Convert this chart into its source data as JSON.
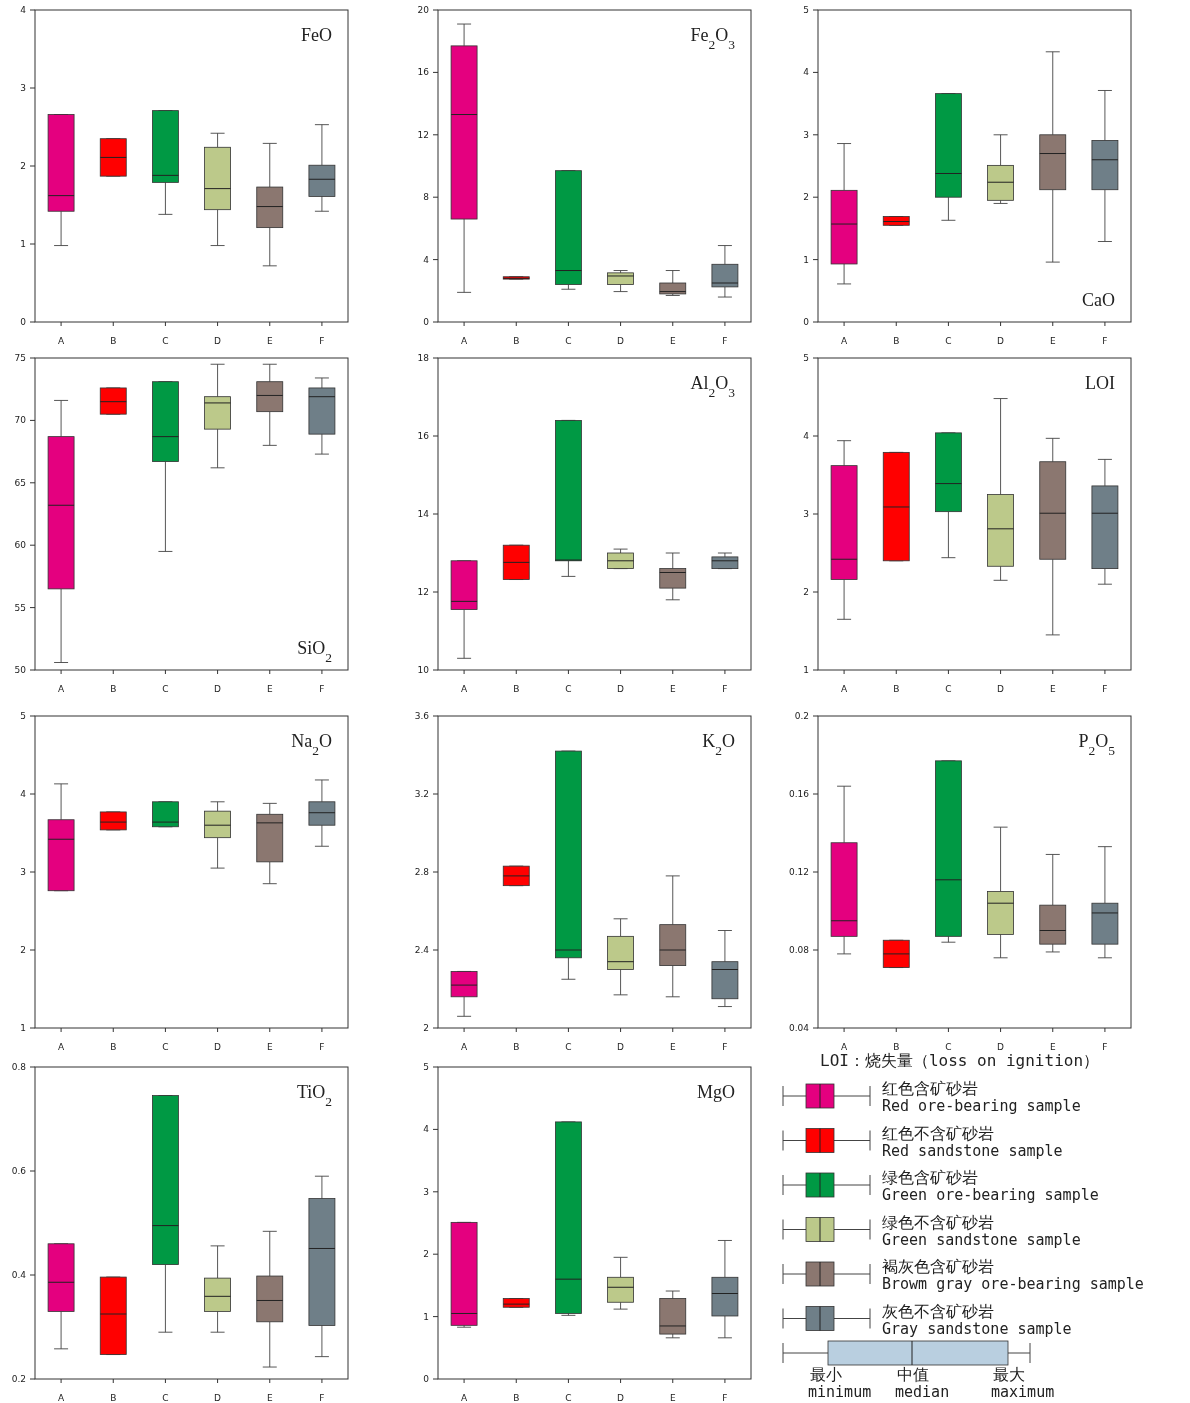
{
  "chart_data": [
    {
      "type": "box",
      "title": "FeO",
      "categories": [
        "A",
        "B",
        "C",
        "D",
        "E",
        "F"
      ],
      "colors": [
        "#e4007f",
        "#ff0000",
        "#009944",
        "#bcc98a",
        "#8b7770",
        "#6f7f88"
      ],
      "ylim": [
        0,
        4
      ],
      "yticks": [
        0,
        1,
        2,
        3,
        4
      ],
      "boxes": [
        {
          "low": 0.98,
          "q1": 1.42,
          "median": 1.62,
          "q3": 2.66,
          "high": 2.66
        },
        {
          "low": 1.87,
          "q1": 1.87,
          "median": 2.11,
          "q3": 2.35,
          "high": 2.35
        },
        {
          "low": 1.38,
          "q1": 1.79,
          "median": 1.88,
          "q3": 2.71,
          "high": 2.71
        },
        {
          "low": 0.98,
          "q1": 1.44,
          "median": 1.71,
          "q3": 2.24,
          "high": 2.42
        },
        {
          "low": 0.72,
          "q1": 1.21,
          "median": 1.48,
          "q3": 1.73,
          "high": 2.29
        },
        {
          "low": 1.42,
          "q1": 1.61,
          "median": 1.83,
          "q3": 2.01,
          "high": 2.53
        }
      ]
    },
    {
      "type": "box",
      "title": "Fe$_{2}$O$_{3}$",
      "categories": [
        "A",
        "B",
        "C",
        "D",
        "E",
        "F"
      ],
      "colors": [
        "#e4007f",
        "#ff0000",
        "#009944",
        "#bcc98a",
        "#8b7770",
        "#6f7f88"
      ],
      "ylim": [
        0,
        20
      ],
      "yticks": [
        0,
        4,
        8,
        12,
        16,
        20
      ],
      "boxes": [
        {
          "low": 1.9,
          "q1": 6.6,
          "median": 13.3,
          "q3": 17.7,
          "high": 19.1
        },
        {
          "low": 2.75,
          "q1": 2.75,
          "median": 2.8,
          "q3": 2.9,
          "high": 2.9
        },
        {
          "low": 2.1,
          "q1": 2.4,
          "median": 3.3,
          "q3": 9.7,
          "high": 9.7
        },
        {
          "low": 1.95,
          "q1": 2.4,
          "median": 2.95,
          "q3": 3.15,
          "high": 3.3
        },
        {
          "low": 1.7,
          "q1": 1.8,
          "median": 1.95,
          "q3": 2.5,
          "high": 3.3
        },
        {
          "low": 1.6,
          "q1": 2.25,
          "median": 2.5,
          "q3": 3.7,
          "high": 4.9
        }
      ]
    },
    {
      "type": "box",
      "title": "CaO",
      "categories": [
        "A",
        "B",
        "C",
        "D",
        "E",
        "F"
      ],
      "colors": [
        "#e4007f",
        "#ff0000",
        "#009944",
        "#bcc98a",
        "#8b7770",
        "#6f7f88"
      ],
      "ylim": [
        0,
        5
      ],
      "yticks": [
        0,
        1,
        2,
        3,
        4,
        5
      ],
      "boxes": [
        {
          "low": 0.61,
          "q1": 0.93,
          "median": 1.57,
          "q3": 2.11,
          "high": 2.86
        },
        {
          "low": 1.55,
          "q1": 1.55,
          "median": 1.61,
          "q3": 1.69,
          "high": 1.69
        },
        {
          "low": 1.63,
          "q1": 2.0,
          "median": 2.38,
          "q3": 3.66,
          "high": 3.66
        },
        {
          "low": 1.9,
          "q1": 1.95,
          "median": 2.24,
          "q3": 2.51,
          "high": 3.0
        },
        {
          "low": 0.96,
          "q1": 2.12,
          "median": 2.7,
          "q3": 3.0,
          "high": 4.33
        },
        {
          "low": 1.29,
          "q1": 2.12,
          "median": 2.6,
          "q3": 2.91,
          "high": 3.71
        }
      ]
    },
    {
      "type": "box",
      "title": "SiO$_{2}$",
      "categories": [
        "A",
        "B",
        "C",
        "D",
        "E",
        "F"
      ],
      "colors": [
        "#e4007f",
        "#ff0000",
        "#009944",
        "#bcc98a",
        "#8b7770",
        "#6f7f88"
      ],
      "ylim": [
        50,
        75
      ],
      "yticks": [
        50,
        55,
        60,
        65,
        70,
        75
      ],
      "boxes": [
        {
          "low": 50.6,
          "q1": 56.5,
          "median": 63.2,
          "q3": 68.7,
          "high": 71.6
        },
        {
          "low": 70.5,
          "q1": 70.5,
          "median": 71.5,
          "q3": 72.6,
          "high": 72.6
        },
        {
          "low": 59.5,
          "q1": 66.7,
          "median": 68.7,
          "q3": 73.1,
          "high": 73.1
        },
        {
          "low": 66.2,
          "q1": 69.3,
          "median": 71.4,
          "q3": 71.9,
          "high": 74.5
        },
        {
          "low": 68.0,
          "q1": 70.7,
          "median": 72.0,
          "q3": 73.1,
          "high": 74.5
        },
        {
          "low": 67.3,
          "q1": 68.9,
          "median": 71.9,
          "q3": 72.6,
          "high": 73.4
        }
      ]
    },
    {
      "type": "box",
      "title": "Al$_{2}$O$_{3}$",
      "categories": [
        "A",
        "B",
        "C",
        "D",
        "E",
        "F"
      ],
      "colors": [
        "#e4007f",
        "#ff0000",
        "#009944",
        "#bcc98a",
        "#8b7770",
        "#6f7f88"
      ],
      "ylim": [
        10,
        18
      ],
      "yticks": [
        10,
        12,
        14,
        16,
        18
      ],
      "boxes": [
        {
          "low": 10.3,
          "q1": 11.55,
          "median": 11.76,
          "q3": 12.8,
          "high": 12.8
        },
        {
          "low": 12.32,
          "q1": 12.32,
          "median": 12.76,
          "q3": 13.2,
          "high": 13.2
        },
        {
          "low": 12.4,
          "q1": 12.8,
          "median": 12.82,
          "q3": 16.4,
          "high": 16.4
        },
        {
          "low": 12.6,
          "q1": 12.6,
          "median": 12.8,
          "q3": 13.0,
          "high": 13.1
        },
        {
          "low": 11.8,
          "q1": 12.1,
          "median": 12.5,
          "q3": 12.6,
          "high": 13.0
        },
        {
          "low": 12.6,
          "q1": 12.6,
          "median": 12.8,
          "q3": 12.9,
          "high": 13.0
        }
      ]
    },
    {
      "type": "box",
      "title": "LOI",
      "categories": [
        "A",
        "B",
        "C",
        "D",
        "E",
        "F"
      ],
      "colors": [
        "#e4007f",
        "#ff0000",
        "#009944",
        "#bcc98a",
        "#8b7770",
        "#6f7f88"
      ],
      "ylim": [
        1,
        5
      ],
      "yticks": [
        1,
        2,
        3,
        4,
        5
      ],
      "boxes": [
        {
          "low": 1.65,
          "q1": 2.16,
          "median": 2.42,
          "q3": 3.62,
          "high": 3.94
        },
        {
          "low": 2.4,
          "q1": 2.4,
          "median": 3.09,
          "q3": 3.79,
          "high": 3.79
        },
        {
          "low": 2.44,
          "q1": 3.03,
          "median": 3.39,
          "q3": 4.04,
          "high": 4.04
        },
        {
          "low": 2.15,
          "q1": 2.33,
          "median": 2.81,
          "q3": 3.25,
          "high": 4.48
        },
        {
          "low": 1.45,
          "q1": 2.42,
          "median": 3.01,
          "q3": 3.67,
          "high": 3.97
        },
        {
          "low": 2.1,
          "q1": 2.3,
          "median": 3.01,
          "q3": 3.36,
          "high": 3.7
        }
      ]
    },
    {
      "type": "box",
      "title": "Na$_{2}$O",
      "categories": [
        "A",
        "B",
        "C",
        "D",
        "E",
        "F"
      ],
      "colors": [
        "#e4007f",
        "#ff0000",
        "#009944",
        "#bcc98a",
        "#8b7770",
        "#6f7f88"
      ],
      "ylim": [
        1,
        5
      ],
      "yticks": [
        1,
        2,
        3,
        4,
        5
      ],
      "boxes": [
        {
          "low": 2.76,
          "q1": 2.76,
          "median": 3.42,
          "q3": 3.67,
          "high": 4.13
        },
        {
          "low": 3.54,
          "q1": 3.54,
          "median": 3.64,
          "q3": 3.77,
          "high": 3.77
        },
        {
          "low": 3.58,
          "q1": 3.58,
          "median": 3.64,
          "q3": 3.9,
          "high": 3.9
        },
        {
          "low": 3.05,
          "q1": 3.44,
          "median": 3.6,
          "q3": 3.78,
          "high": 3.9
        },
        {
          "low": 2.85,
          "q1": 3.13,
          "median": 3.63,
          "q3": 3.74,
          "high": 3.88
        },
        {
          "low": 3.33,
          "q1": 3.6,
          "median": 3.76,
          "q3": 3.9,
          "high": 4.18
        }
      ]
    },
    {
      "type": "box",
      "title": "K$_{2}$O",
      "categories": [
        "A",
        "B",
        "C",
        "D",
        "E",
        "F"
      ],
      "colors": [
        "#e4007f",
        "#ff0000",
        "#009944",
        "#bcc98a",
        "#8b7770",
        "#6f7f88"
      ],
      "ylim": [
        2,
        3.6
      ],
      "yticks": [
        2,
        2.4,
        2.8,
        3.2,
        3.6
      ],
      "boxes": [
        {
          "low": 2.06,
          "q1": 2.16,
          "median": 2.22,
          "q3": 2.29,
          "high": 2.29
        },
        {
          "low": 2.73,
          "q1": 2.73,
          "median": 2.78,
          "q3": 2.83,
          "high": 2.83
        },
        {
          "low": 2.25,
          "q1": 2.36,
          "median": 2.4,
          "q3": 3.42,
          "high": 3.42
        },
        {
          "low": 2.17,
          "q1": 2.3,
          "median": 2.34,
          "q3": 2.47,
          "high": 2.56
        },
        {
          "low": 2.16,
          "q1": 2.32,
          "median": 2.4,
          "q3": 2.53,
          "high": 2.78
        },
        {
          "low": 2.11,
          "q1": 2.15,
          "median": 2.3,
          "q3": 2.34,
          "high": 2.5
        }
      ]
    },
    {
      "type": "box",
      "title": "P$_{2}$O$_{5}$",
      "categories": [
        "A",
        "B",
        "C",
        "D",
        "E",
        "F"
      ],
      "colors": [
        "#e4007f",
        "#ff0000",
        "#009944",
        "#bcc98a",
        "#8b7770",
        "#6f7f88"
      ],
      "ylim": [
        0.04,
        0.2
      ],
      "yticks": [
        0.04,
        0.08,
        0.12,
        0.16,
        0.2
      ],
      "boxes": [
        {
          "low": 0.078,
          "q1": 0.087,
          "median": 0.095,
          "q3": 0.135,
          "high": 0.164
        },
        {
          "low": 0.071,
          "q1": 0.071,
          "median": 0.078,
          "q3": 0.085,
          "high": 0.085
        },
        {
          "low": 0.084,
          "q1": 0.087,
          "median": 0.116,
          "q3": 0.177,
          "high": 0.177
        },
        {
          "low": 0.076,
          "q1": 0.088,
          "median": 0.104,
          "q3": 0.11,
          "high": 0.143
        },
        {
          "low": 0.079,
          "q1": 0.083,
          "median": 0.09,
          "q3": 0.103,
          "high": 0.129
        },
        {
          "low": 0.076,
          "q1": 0.083,
          "median": 0.099,
          "q3": 0.104,
          "high": 0.133
        }
      ]
    },
    {
      "type": "box",
      "title": "TiO$_{2}$",
      "categories": [
        "A",
        "B",
        "C",
        "D",
        "E",
        "F"
      ],
      "colors": [
        "#e4007f",
        "#ff0000",
        "#009944",
        "#bcc98a",
        "#8b7770",
        "#6f7f88"
      ],
      "ylim": [
        0.2,
        0.8
      ],
      "yticks": [
        0.2,
        0.4,
        0.6,
        0.8
      ],
      "boxes": [
        {
          "low": 0.258,
          "q1": 0.33,
          "median": 0.386,
          "q3": 0.46,
          "high": 0.46
        },
        {
          "low": 0.247,
          "q1": 0.247,
          "median": 0.325,
          "q3": 0.396,
          "high": 0.396
        },
        {
          "low": 0.29,
          "q1": 0.42,
          "median": 0.495,
          "q3": 0.745,
          "high": 0.745
        },
        {
          "low": 0.29,
          "q1": 0.33,
          "median": 0.359,
          "q3": 0.394,
          "high": 0.456
        },
        {
          "low": 0.223,
          "q1": 0.31,
          "median": 0.351,
          "q3": 0.398,
          "high": 0.484
        },
        {
          "low": 0.243,
          "q1": 0.303,
          "median": 0.451,
          "q3": 0.547,
          "high": 0.59
        }
      ]
    },
    {
      "type": "box",
      "title": "MgO",
      "categories": [
        "A",
        "B",
        "C",
        "D",
        "E",
        "F"
      ],
      "colors": [
        "#e4007f",
        "#ff0000",
        "#009944",
        "#bcc98a",
        "#8b7770",
        "#6f7f88"
      ],
      "ylim": [
        0,
        5
      ],
      "yticks": [
        0,
        1,
        2,
        3,
        4,
        5
      ],
      "boxes": [
        {
          "low": 0.83,
          "q1": 0.86,
          "median": 1.05,
          "q3": 2.51,
          "high": 2.51
        },
        {
          "low": 1.15,
          "q1": 1.15,
          "median": 1.2,
          "q3": 1.29,
          "high": 1.29
        },
        {
          "low": 1.02,
          "q1": 1.05,
          "median": 1.6,
          "q3": 4.12,
          "high": 4.12
        },
        {
          "low": 1.12,
          "q1": 1.23,
          "median": 1.47,
          "q3": 1.63,
          "high": 1.95
        },
        {
          "low": 0.66,
          "q1": 0.72,
          "median": 0.85,
          "q3": 1.29,
          "high": 1.41
        },
        {
          "low": 0.66,
          "q1": 1.01,
          "median": 1.37,
          "q3": 1.63,
          "high": 2.22
        }
      ]
    },
    {
      "type": "other",
      "colors": [
        "#b9cfe0"
      ],
      "annotations": [
        "LOI：烧失量（loss on ignition）",
        "红色含矿砂岩",
        "Red ore-bearing sample",
        "红色不含矿砂岩",
        "Red sandstone sample",
        "绿色含矿砂岩",
        "Green ore-bearing sample",
        "绿色不含矿砂岩",
        "Green sandstone sample",
        "褐灰色含矿砂岩",
        "Browm gray ore-bearing sample",
        "灰色不含矿砂岩",
        "Gray sandstone sample",
        "最小",
        "minimum",
        "中值",
        "median",
        "最大",
        "maximum"
      ]
    }
  ]
}
